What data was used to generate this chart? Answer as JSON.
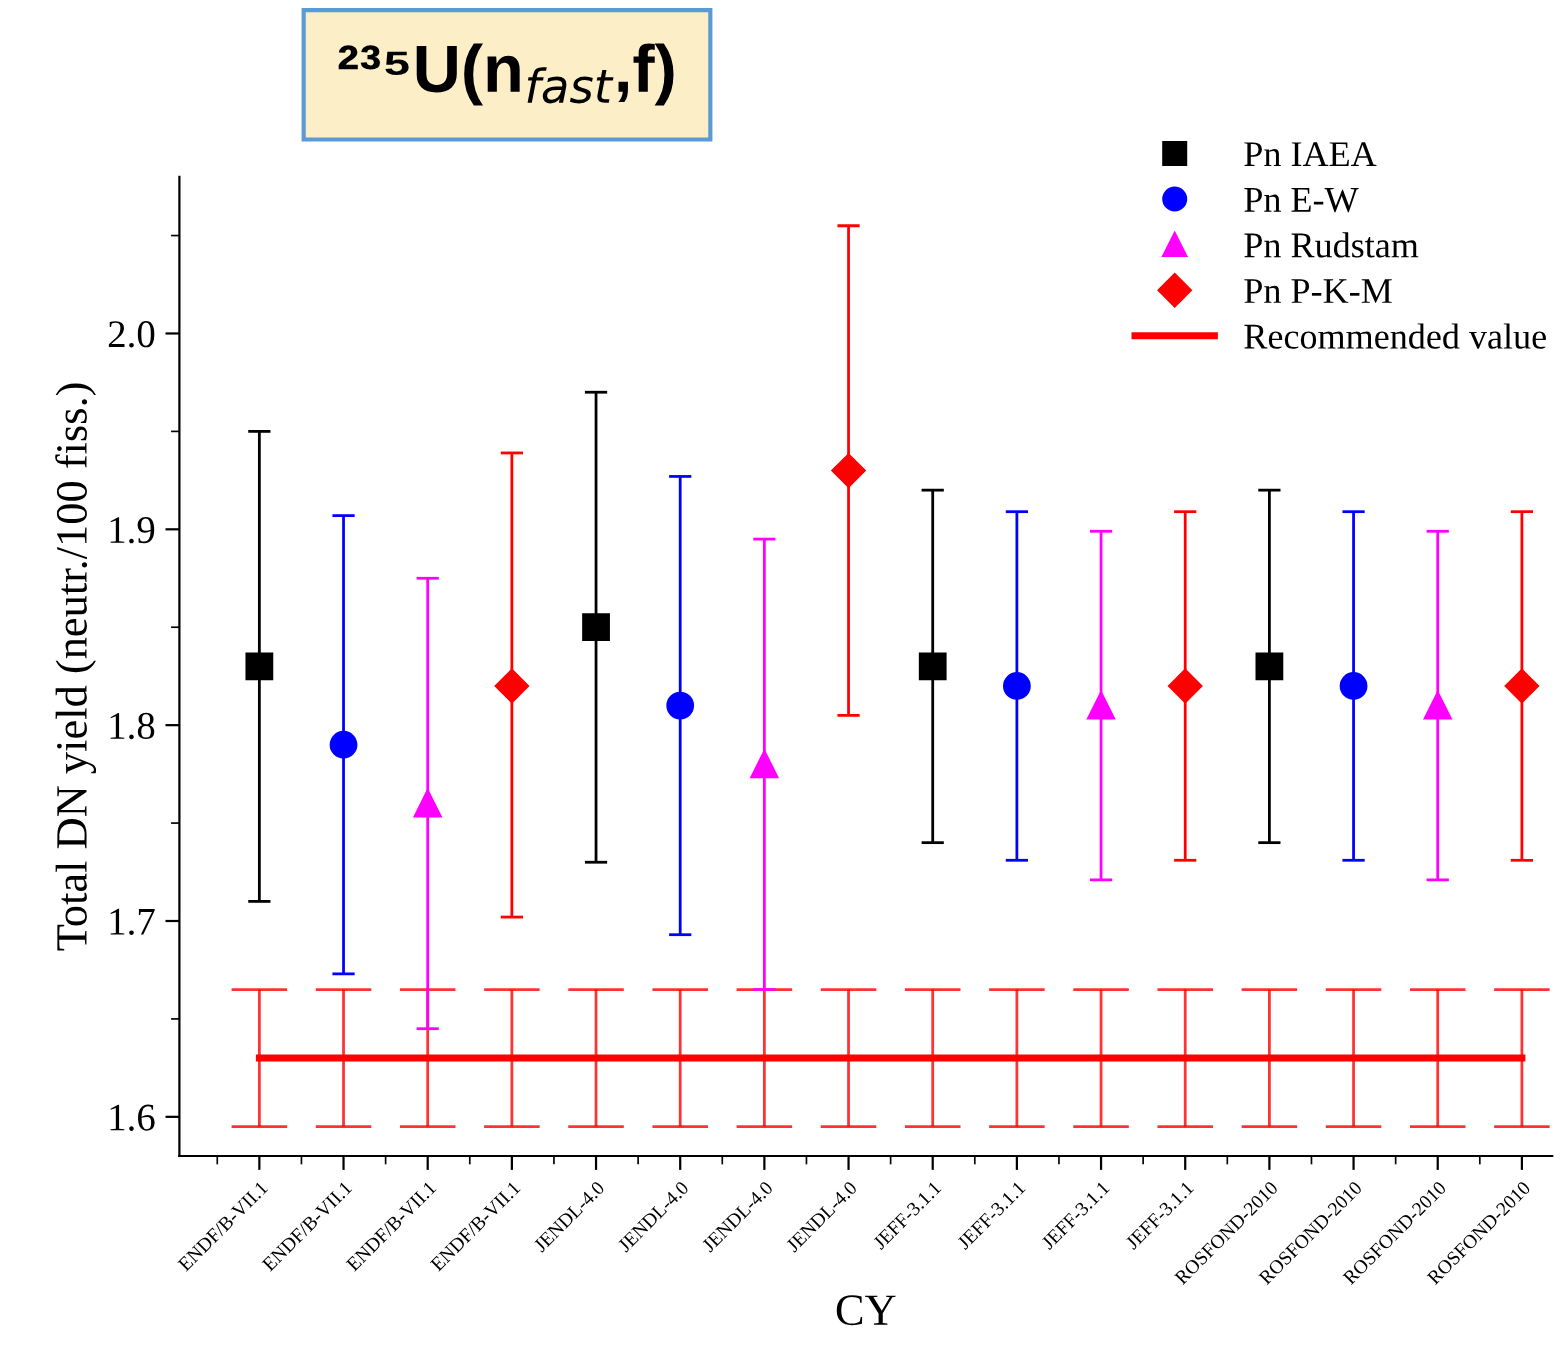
{
  "chart_data": {
    "type": "scatter",
    "title": "²³⁵U(n$_{fast}$,f)",
    "xlabel": "CY",
    "ylabel": "Total DN yield (neutr./100 fiss.)",
    "categories": [
      "ENDF/B-VII.1",
      "ENDF/B-VII.1",
      "ENDF/B-VII.1",
      "ENDF/B-VII.1",
      "JENDL-4.0",
      "JENDL-4.0",
      "JENDL-4.0",
      "JENDL-4.0",
      "JEFF-3.1.1",
      "JEFF-3.1.1",
      "JEFF-3.1.1",
      "JEFF-3.1.1",
      "ROSFOND-2010",
      "ROSFOND-2010",
      "ROSFOND-2010",
      "ROSFOND-2010"
    ],
    "ylim": [
      1.58,
      2.08
    ],
    "yticks": [
      1.6,
      1.7,
      1.8,
      1.9,
      {
        "value": 2.0,
        "label": "2.0"
      }
    ],
    "grid": false,
    "legend": "top right",
    "series": [
      {
        "name": "Pn IAEA",
        "color": "#000000",
        "marker": "square",
        "values": [
          1.83,
          null,
          null,
          null,
          1.85,
          null,
          null,
          null,
          1.83,
          null,
          null,
          null,
          1.83,
          null,
          null,
          null
        ],
        "errors": [
          [
            1.71,
            1.95
          ],
          null,
          null,
          null,
          [
            1.73,
            1.97
          ],
          null,
          null,
          null,
          [
            1.74,
            1.92
          ],
          null,
          null,
          null,
          [
            1.74,
            1.92
          ],
          null,
          null,
          null
        ]
      },
      {
        "name": "Pn E-W",
        "color": "#0000ff",
        "marker": "circle",
        "values": [
          null,
          1.79,
          null,
          null,
          null,
          1.81,
          null,
          null,
          null,
          1.82,
          null,
          null,
          null,
          1.82,
          null,
          null
        ],
        "errors": [
          null,
          [
            1.673,
            1.907
          ],
          null,
          null,
          null,
          [
            1.693,
            1.927
          ],
          null,
          null,
          null,
          [
            1.731,
            1.909
          ],
          null,
          null,
          null,
          [
            1.731,
            1.909
          ],
          null,
          null
        ]
      },
      {
        "name": "Pn Rudstam",
        "color": "#ff00ff",
        "marker": "triangle",
        "values": [
          null,
          null,
          1.76,
          null,
          null,
          null,
          1.78,
          null,
          null,
          null,
          1.81,
          null,
          null,
          null,
          1.81,
          null
        ],
        "errors": [
          null,
          null,
          [
            1.645,
            1.875
          ],
          null,
          null,
          null,
          [
            1.665,
            1.895
          ],
          null,
          null,
          null,
          [
            1.721,
            1.899
          ],
          null,
          null,
          null,
          [
            1.721,
            1.899
          ],
          null
        ]
      },
      {
        "name": "Pn P-K-M",
        "color": "#ff0000",
        "marker": "diamond",
        "values": [
          null,
          null,
          null,
          1.82,
          null,
          null,
          null,
          1.93,
          null,
          null,
          null,
          1.82,
          null,
          null,
          null,
          1.82
        ],
        "errors": [
          null,
          null,
          null,
          [
            1.702,
            1.939
          ],
          null,
          null,
          null,
          [
            1.805,
            2.055
          ],
          null,
          null,
          null,
          [
            1.731,
            1.909
          ],
          null,
          null,
          null,
          [
            1.731,
            1.909
          ]
        ]
      },
      {
        "name": "Recommended value",
        "type": "line",
        "color": "#ff0000",
        "marker": "none",
        "values": [
          1.63,
          1.63,
          1.63,
          1.63,
          1.63,
          1.63,
          1.63,
          1.63,
          1.63,
          1.63,
          1.63,
          1.63,
          1.63,
          1.63,
          1.63,
          1.63
        ],
        "errors": [
          0.035,
          0.035,
          0.035,
          0.035,
          0.035,
          0.035,
          0.035,
          0.035,
          0.035,
          0.035,
          0.035,
          0.035,
          0.035,
          0.035,
          0.035,
          0.035
        ]
      }
    ]
  }
}
